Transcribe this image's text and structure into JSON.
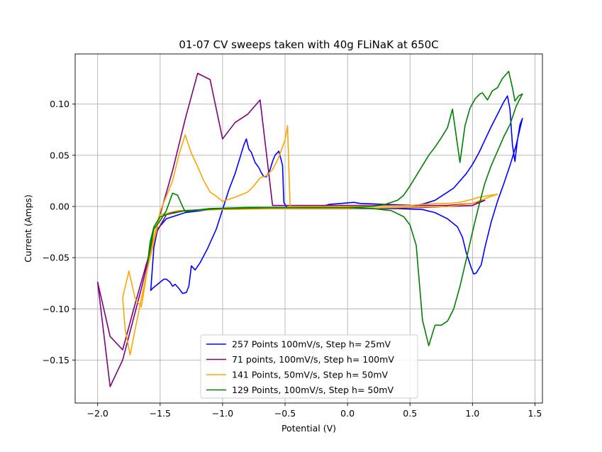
{
  "chart_data": {
    "type": "line",
    "title": "01-07 CV sweeps taken with 40g FLiNaK at 650C",
    "xlabel": "Potential (V)",
    "ylabel": "Current (Amps)",
    "xlim": [
      -2.18,
      1.56
    ],
    "ylim": [
      -0.192,
      0.149
    ],
    "xticks": [
      -2.0,
      -1.5,
      -1.0,
      -0.5,
      0.0,
      0.5,
      1.0,
      1.5
    ],
    "xtick_labels": [
      "−2.0",
      "−1.5",
      "−1.0",
      "−0.5",
      "0.0",
      "0.5",
      "1.0",
      "1.5"
    ],
    "yticks": [
      -0.15,
      -0.1,
      -0.05,
      0.0,
      0.05,
      0.1
    ],
    "ytick_labels": [
      "−0.15",
      "−0.10",
      "−0.05",
      "0.00",
      "0.05",
      "0.10"
    ],
    "grid": true,
    "legend_position": "lower-center",
    "series": [
      {
        "name": "257 Points 100mV/s, Step h= 25mV",
        "color": "#0000ff",
        "points": [
          [
            -1.575,
            -0.082
          ],
          [
            -1.56,
            -0.08
          ],
          [
            -1.5,
            -0.074
          ],
          [
            -1.47,
            -0.071
          ],
          [
            -1.45,
            -0.071
          ],
          [
            -1.42,
            -0.074
          ],
          [
            -1.4,
            -0.078
          ],
          [
            -1.38,
            -0.076
          ],
          [
            -1.35,
            -0.08
          ],
          [
            -1.32,
            -0.085
          ],
          [
            -1.29,
            -0.084
          ],
          [
            -1.27,
            -0.078
          ],
          [
            -1.25,
            -0.058
          ],
          [
            -1.22,
            -0.062
          ],
          [
            -1.18,
            -0.055
          ],
          [
            -1.12,
            -0.041
          ],
          [
            -1.05,
            -0.022
          ],
          [
            -1.0,
            -0.003
          ],
          [
            -0.95,
            0.016
          ],
          [
            -0.9,
            0.032
          ],
          [
            -0.86,
            0.048
          ],
          [
            -0.83,
            0.06
          ],
          [
            -0.81,
            0.066
          ],
          [
            -0.79,
            0.056
          ],
          [
            -0.77,
            0.053
          ],
          [
            -0.74,
            0.043
          ],
          [
            -0.71,
            0.038
          ],
          [
            -0.69,
            0.033
          ],
          [
            -0.67,
            0.029
          ],
          [
            -0.65,
            0.029
          ],
          [
            -0.62,
            0.036
          ],
          [
            -0.6,
            0.044
          ],
          [
            -0.58,
            0.05
          ],
          [
            -0.55,
            0.054
          ],
          [
            -0.53,
            0.045
          ],
          [
            -0.52,
            0.04
          ],
          [
            -0.51,
            0.004
          ],
          [
            -0.48,
            -0.002
          ],
          [
            -0.4,
            -0.001
          ],
          [
            -0.2,
            0.0
          ],
          [
            -0.15,
            0.002
          ],
          [
            -0.05,
            0.003
          ],
          [
            0.05,
            0.004
          ],
          [
            0.1,
            0.003
          ],
          [
            0.3,
            0.002
          ],
          [
            0.55,
            0.001
          ],
          [
            0.62,
            0.003
          ],
          [
            0.7,
            0.006
          ],
          [
            0.75,
            0.01
          ],
          [
            0.8,
            0.014
          ],
          [
            0.85,
            0.018
          ],
          [
            0.9,
            0.025
          ],
          [
            0.95,
            0.032
          ],
          [
            1.0,
            0.041
          ],
          [
            1.05,
            0.052
          ],
          [
            1.1,
            0.065
          ],
          [
            1.15,
            0.078
          ],
          [
            1.2,
            0.09
          ],
          [
            1.25,
            0.102
          ],
          [
            1.28,
            0.108
          ],
          [
            1.3,
            0.095
          ],
          [
            1.32,
            0.06
          ],
          [
            1.34,
            0.044
          ],
          [
            1.36,
            0.065
          ],
          [
            1.38,
            0.08
          ],
          [
            1.4,
            0.086
          ],
          [
            1.38,
            0.076
          ],
          [
            1.35,
            0.06
          ],
          [
            1.3,
            0.04
          ],
          [
            1.25,
            0.022
          ],
          [
            1.2,
            0.005
          ],
          [
            1.15,
            -0.015
          ],
          [
            1.1,
            -0.04
          ],
          [
            1.07,
            -0.057
          ],
          [
            1.03,
            -0.065
          ],
          [
            1.01,
            -0.066
          ],
          [
            0.99,
            -0.06
          ],
          [
            0.95,
            -0.045
          ],
          [
            0.92,
            -0.03
          ],
          [
            0.88,
            -0.02
          ],
          [
            0.8,
            -0.012
          ],
          [
            0.7,
            -0.006
          ],
          [
            0.6,
            -0.003
          ],
          [
            0.4,
            -0.002
          ],
          [
            0.0,
            -0.002
          ],
          [
            -0.4,
            -0.002
          ],
          [
            -0.8,
            -0.002
          ],
          [
            -1.1,
            -0.003
          ],
          [
            -1.3,
            -0.006
          ],
          [
            -1.45,
            -0.012
          ],
          [
            -1.52,
            -0.022
          ],
          [
            -1.55,
            -0.04
          ],
          [
            -1.575,
            -0.082
          ]
        ]
      },
      {
        "name": "71 points, 100mV/s, Step h= 100mV",
        "color": "#800080",
        "points": [
          [
            -2.0,
            -0.074
          ],
          [
            -1.9,
            -0.127
          ],
          [
            -1.8,
            -0.14
          ],
          [
            -1.7,
            -0.095
          ],
          [
            -1.6,
            -0.052
          ],
          [
            -1.5,
            -0.008
          ],
          [
            -1.4,
            0.035
          ],
          [
            -1.3,
            0.085
          ],
          [
            -1.2,
            0.13
          ],
          [
            -1.1,
            0.124
          ],
          [
            -1.0,
            0.066
          ],
          [
            -0.9,
            0.082
          ],
          [
            -0.8,
            0.09
          ],
          [
            -0.7,
            0.104
          ],
          [
            -0.6,
            0.001
          ],
          [
            0.0,
            0.001
          ],
          [
            0.5,
            0.001
          ],
          [
            0.8,
            0.001
          ],
          [
            1.0,
            0.003
          ],
          [
            1.1,
            0.006
          ],
          [
            1.0,
            0.001
          ],
          [
            0.6,
            -0.001
          ],
          [
            0.0,
            -0.002
          ],
          [
            -0.5,
            -0.002
          ],
          [
            -1.0,
            -0.002
          ],
          [
            -1.3,
            -0.004
          ],
          [
            -1.45,
            -0.008
          ],
          [
            -1.55,
            -0.03
          ],
          [
            -1.65,
            -0.08
          ],
          [
            -1.8,
            -0.15
          ],
          [
            -1.9,
            -0.176
          ],
          [
            -2.0,
            -0.074
          ]
        ]
      },
      {
        "name": "141 Points, 50mV/s, Step h= 50mV",
        "color": "#ffa500",
        "points": [
          [
            -1.8,
            -0.089
          ],
          [
            -1.75,
            -0.063
          ],
          [
            -1.7,
            -0.09
          ],
          [
            -1.65,
            -0.098
          ],
          [
            -1.6,
            -0.06
          ],
          [
            -1.55,
            -0.03
          ],
          [
            -1.5,
            -0.005
          ],
          [
            -1.45,
            0.01
          ],
          [
            -1.4,
            0.025
          ],
          [
            -1.35,
            0.05
          ],
          [
            -1.3,
            0.07
          ],
          [
            -1.25,
            0.052
          ],
          [
            -1.2,
            0.039
          ],
          [
            -1.15,
            0.025
          ],
          [
            -1.1,
            0.014
          ],
          [
            -1.05,
            0.01
          ],
          [
            -1.0,
            0.005
          ],
          [
            -0.9,
            0.009
          ],
          [
            -0.8,
            0.014
          ],
          [
            -0.75,
            0.02
          ],
          [
            -0.7,
            0.028
          ],
          [
            -0.65,
            0.03
          ],
          [
            -0.6,
            0.036
          ],
          [
            -0.55,
            0.048
          ],
          [
            -0.5,
            0.065
          ],
          [
            -0.48,
            0.079
          ],
          [
            -0.46,
            0.0
          ],
          [
            0.0,
            0.0
          ],
          [
            0.5,
            0.001
          ],
          [
            0.6,
            0.002
          ],
          [
            0.7,
            0.003
          ],
          [
            0.8,
            0.003
          ],
          [
            0.9,
            0.004
          ],
          [
            1.0,
            0.007
          ],
          [
            1.05,
            0.009
          ],
          [
            1.1,
            0.01
          ],
          [
            1.15,
            0.011
          ],
          [
            1.2,
            0.012
          ],
          [
            1.15,
            0.01
          ],
          [
            1.0,
            0.003
          ],
          [
            0.8,
            0.0
          ],
          [
            0.4,
            -0.001
          ],
          [
            0.0,
            -0.002
          ],
          [
            -0.5,
            -0.002
          ],
          [
            -1.0,
            -0.003
          ],
          [
            -1.35,
            -0.004
          ],
          [
            -1.5,
            -0.008
          ],
          [
            -1.55,
            -0.035
          ],
          [
            -1.6,
            -0.06
          ],
          [
            -1.65,
            -0.09
          ],
          [
            -1.7,
            -0.12
          ],
          [
            -1.74,
            -0.145
          ],
          [
            -1.78,
            -0.12
          ],
          [
            -1.8,
            -0.089
          ]
        ]
      },
      {
        "name": "129 Points, 100mV/s, Step h= 50mV",
        "color": "#008000",
        "points": [
          [
            -1.6,
            -0.055
          ],
          [
            -1.55,
            -0.022
          ],
          [
            -1.5,
            -0.014
          ],
          [
            -1.45,
            -0.004
          ],
          [
            -1.4,
            0.013
          ],
          [
            -1.36,
            0.011
          ],
          [
            -1.32,
            0.0
          ],
          [
            -1.3,
            -0.005
          ],
          [
            -1.25,
            -0.004
          ],
          [
            -1.1,
            -0.002
          ],
          [
            -0.8,
            -0.001
          ],
          [
            -0.4,
            -0.001
          ],
          [
            0.0,
            -0.001
          ],
          [
            0.2,
            0.0
          ],
          [
            0.3,
            0.002
          ],
          [
            0.4,
            0.006
          ],
          [
            0.45,
            0.011
          ],
          [
            0.5,
            0.02
          ],
          [
            0.55,
            0.03
          ],
          [
            0.6,
            0.04
          ],
          [
            0.65,
            0.05
          ],
          [
            0.7,
            0.058
          ],
          [
            0.75,
            0.067
          ],
          [
            0.8,
            0.077
          ],
          [
            0.84,
            0.095
          ],
          [
            0.88,
            0.06
          ],
          [
            0.9,
            0.043
          ],
          [
            0.94,
            0.079
          ],
          [
            0.98,
            0.096
          ],
          [
            1.02,
            0.105
          ],
          [
            1.06,
            0.11
          ],
          [
            1.08,
            0.111
          ],
          [
            1.12,
            0.104
          ],
          [
            1.16,
            0.113
          ],
          [
            1.2,
            0.116
          ],
          [
            1.24,
            0.125
          ],
          [
            1.29,
            0.132
          ],
          [
            1.32,
            0.116
          ],
          [
            1.34,
            0.103
          ],
          [
            1.37,
            0.108
          ],
          [
            1.4,
            0.11
          ],
          [
            1.35,
            0.098
          ],
          [
            1.3,
            0.08
          ],
          [
            1.25,
            0.068
          ],
          [
            1.2,
            0.054
          ],
          [
            1.15,
            0.04
          ],
          [
            1.1,
            0.023
          ],
          [
            1.05,
            0.0
          ],
          [
            1.0,
            -0.025
          ],
          [
            0.95,
            -0.052
          ],
          [
            0.9,
            -0.078
          ],
          [
            0.85,
            -0.1
          ],
          [
            0.8,
            -0.112
          ],
          [
            0.75,
            -0.116
          ],
          [
            0.7,
            -0.116
          ],
          [
            0.65,
            -0.136
          ],
          [
            0.6,
            -0.111
          ],
          [
            0.55,
            -0.038
          ],
          [
            0.5,
            -0.018
          ],
          [
            0.45,
            -0.01
          ],
          [
            0.35,
            -0.004
          ],
          [
            0.2,
            -0.002
          ],
          [
            0.0,
            -0.001
          ],
          [
            -0.5,
            -0.001
          ],
          [
            -1.0,
            -0.002
          ],
          [
            -1.3,
            -0.004
          ],
          [
            -1.4,
            -0.006
          ],
          [
            -1.45,
            -0.008
          ],
          [
            -1.5,
            -0.01
          ],
          [
            -1.55,
            -0.02
          ],
          [
            -1.58,
            -0.035
          ],
          [
            -1.6,
            -0.055
          ]
        ]
      }
    ]
  }
}
